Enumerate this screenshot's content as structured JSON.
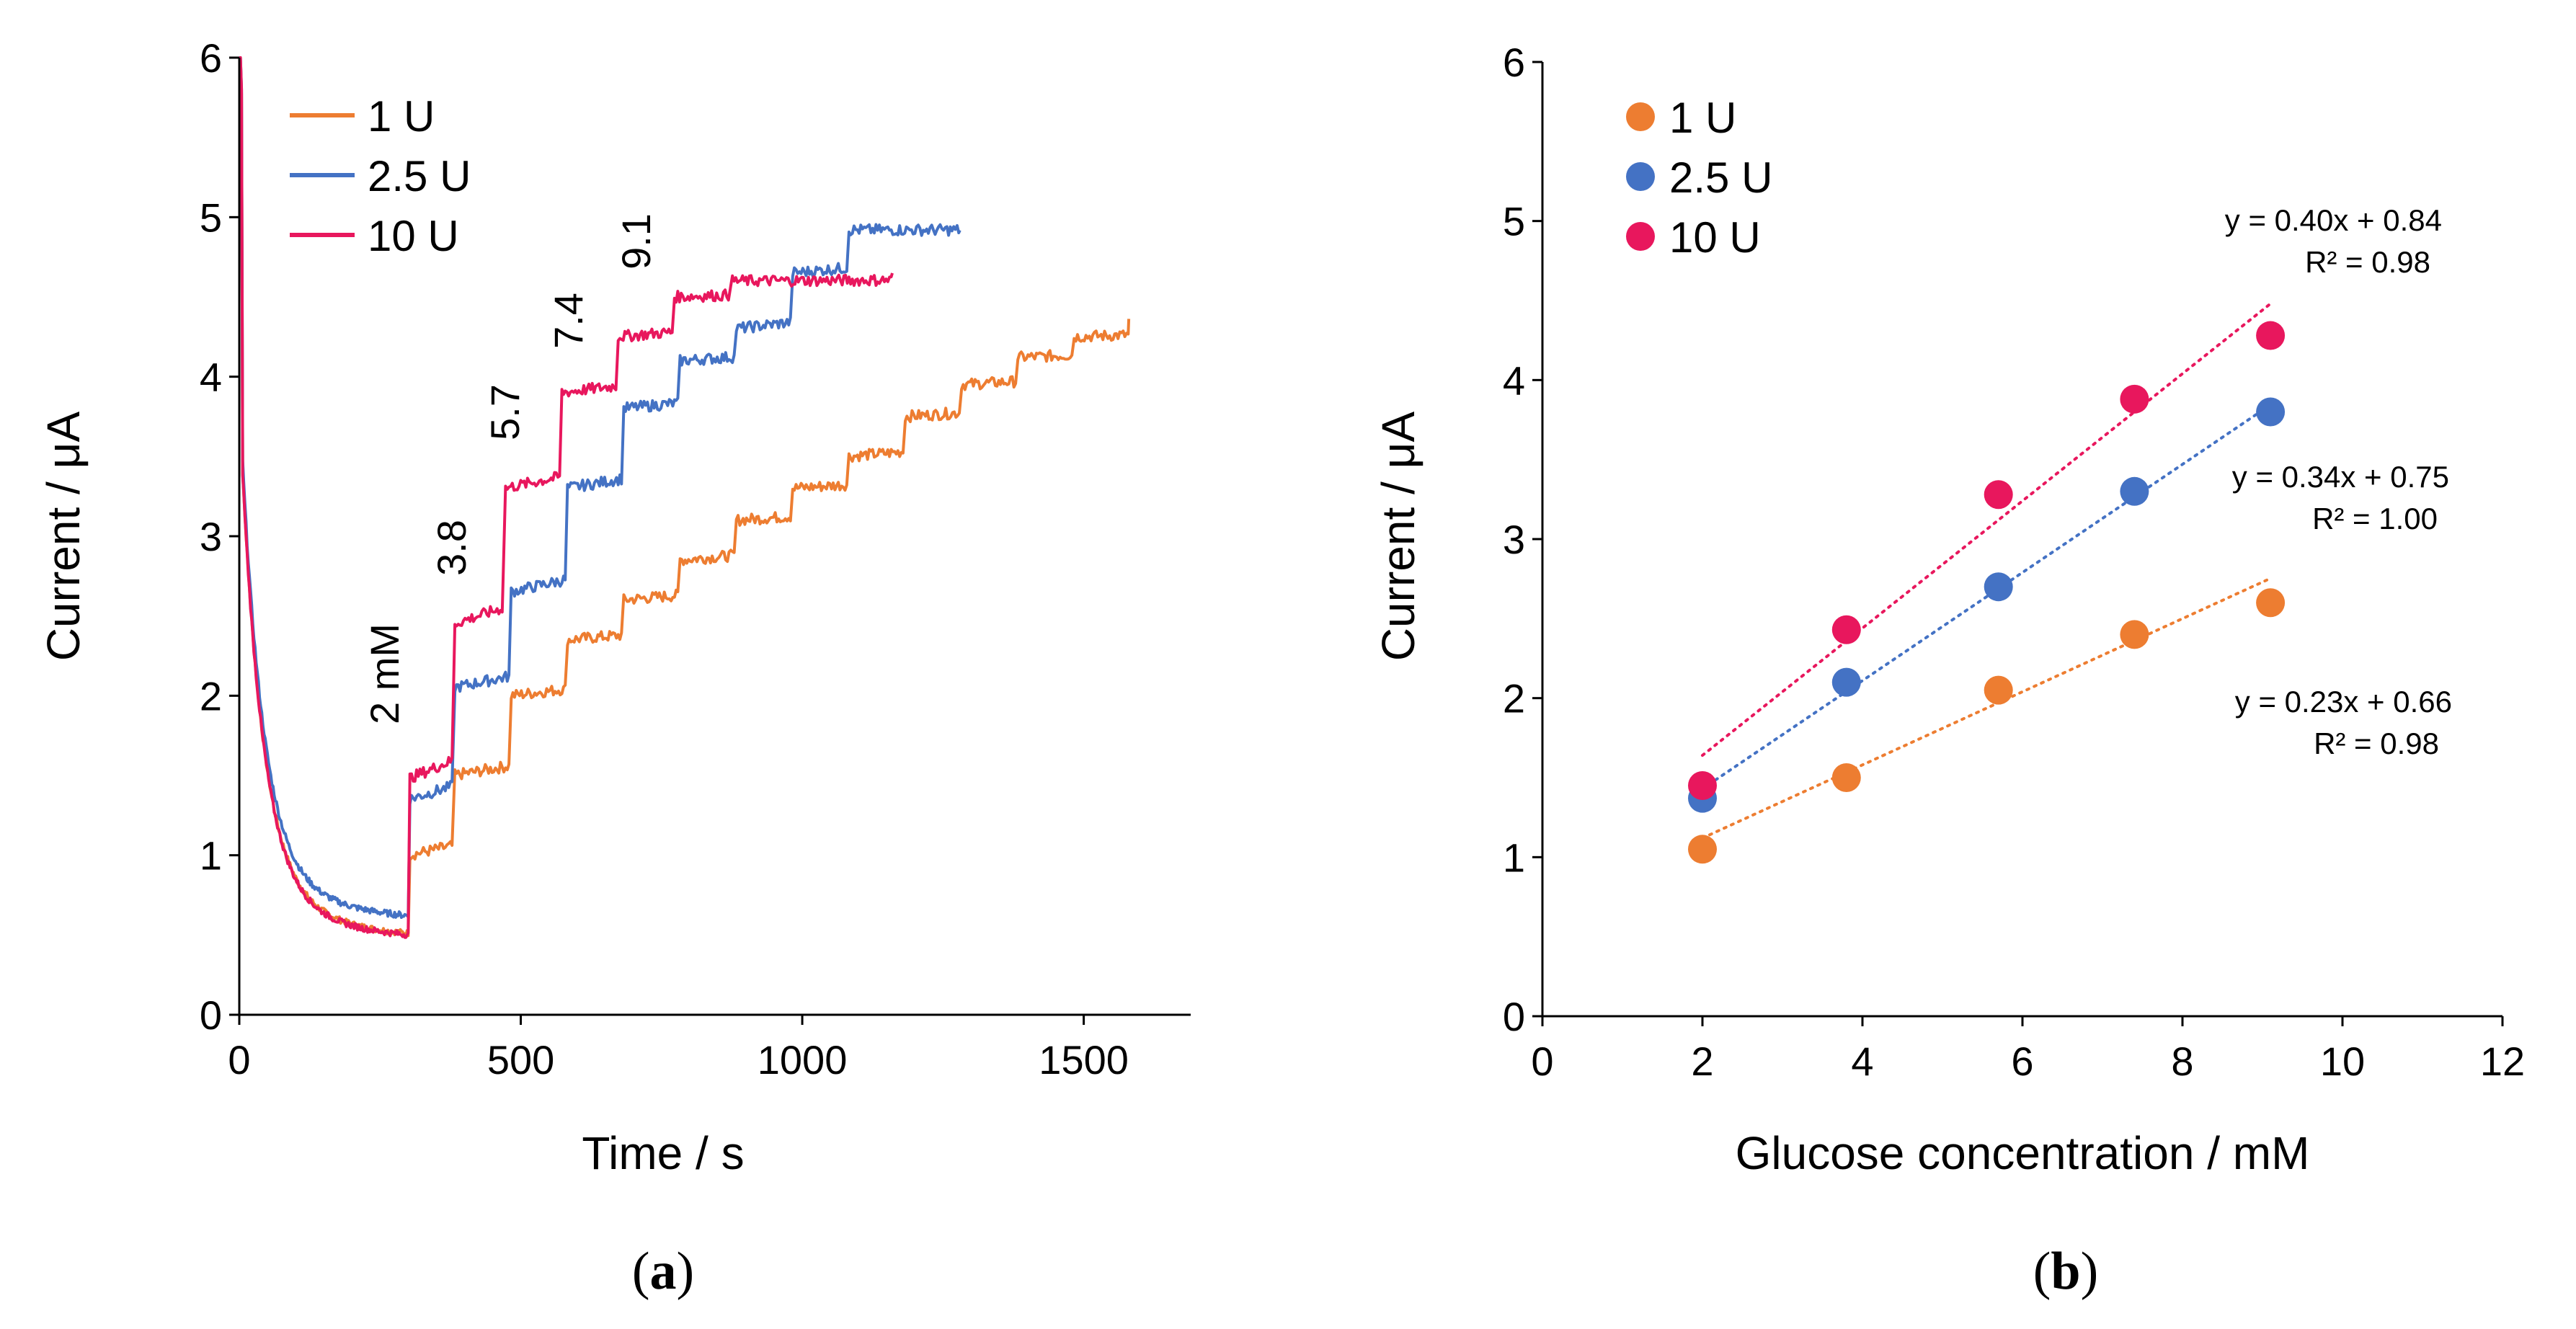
{
  "chart_data": [
    {
      "type": "line",
      "panel_label": "a",
      "xlabel": "Time / s",
      "ylabel": "Current / μA",
      "xlim": [
        0,
        1690
      ],
      "ylim": [
        0,
        6
      ],
      "xticks": [
        "0",
        "500",
        "1000",
        "1500"
      ],
      "yticks": [
        "0",
        "1",
        "2",
        "3",
        "4",
        "5",
        "6"
      ],
      "legend": {
        "position": "top-left",
        "entries": [
          "1 U",
          "2.5 U",
          "10 U"
        ]
      },
      "step_annotations": [
        "2 mM",
        "3.8",
        "5.7",
        "7.4",
        "9.1"
      ],
      "series": [
        {
          "name": "1 U",
          "color": "#ED7D31",
          "decay": {
            "t_end": 300,
            "i_start": 6.0,
            "i_end": 0.47
          },
          "steps": [
            {
              "t": 300,
              "i": 1.0
            },
            {
              "t": 380,
              "i": 1.5
            },
            {
              "t": 480,
              "i": 2.0
            },
            {
              "t": 580,
              "i": 2.35
            },
            {
              "t": 680,
              "i": 2.6
            },
            {
              "t": 780,
              "i": 2.85
            },
            {
              "t": 880,
              "i": 3.1
            },
            {
              "t": 980,
              "i": 3.3
            },
            {
              "t": 1080,
              "i": 3.5
            },
            {
              "t": 1180,
              "i": 3.75
            },
            {
              "t": 1280,
              "i": 3.95
            },
            {
              "t": 1380,
              "i": 4.12
            },
            {
              "t": 1480,
              "i": 4.25
            },
            {
              "t": 1580,
              "i": 4.35
            }
          ]
        },
        {
          "name": "2.5 U",
          "color": "#4472C4",
          "decay": {
            "t_end": 300,
            "i_start": 6.0,
            "i_end": 0.58
          },
          "steps": [
            {
              "t": 300,
              "i": 1.35
            },
            {
              "t": 380,
              "i": 2.05
            },
            {
              "t": 480,
              "i": 2.65
            },
            {
              "t": 580,
              "i": 3.3
            },
            {
              "t": 680,
              "i": 3.8
            },
            {
              "t": 780,
              "i": 4.1
            },
            {
              "t": 880,
              "i": 4.3
            },
            {
              "t": 980,
              "i": 4.65
            },
            {
              "t": 1080,
              "i": 4.92
            },
            {
              "t": 1280,
              "i": 4.92
            }
          ]
        },
        {
          "name": "10 U",
          "color": "#E8175D",
          "decay": {
            "t_end": 300,
            "i_start": 6.0,
            "i_end": 0.46
          },
          "steps": [
            {
              "t": 300,
              "i": 1.48
            },
            {
              "t": 380,
              "i": 2.45
            },
            {
              "t": 470,
              "i": 3.3
            },
            {
              "t": 570,
              "i": 3.9
            },
            {
              "t": 670,
              "i": 4.25
            },
            {
              "t": 770,
              "i": 4.5
            },
            {
              "t": 870,
              "i": 4.6
            },
            {
              "t": 1160,
              "i": 4.65
            }
          ]
        }
      ]
    },
    {
      "type": "scatter",
      "panel_label": "b",
      "xlabel": "Glucose concentration  / mM",
      "ylabel": "Current / μA",
      "xlim": [
        0,
        12
      ],
      "ylim": [
        0,
        6
      ],
      "xticks": [
        "0",
        "2",
        "4",
        "6",
        "8",
        "10",
        "12"
      ],
      "yticks": [
        "0",
        "1",
        "2",
        "3",
        "4",
        "5",
        "6"
      ],
      "legend": {
        "position": "top-left",
        "entries": [
          "1 U",
          "2.5 U",
          "10 U"
        ]
      },
      "x": [
        2.0,
        3.8,
        5.7,
        7.4,
        9.1
      ],
      "series": [
        {
          "name": "1 U",
          "color": "#ED7D31",
          "values": [
            1.05,
            1.5,
            2.05,
            2.4,
            2.6
          ],
          "fit": {
            "slope": 0.23,
            "intercept": 0.66,
            "equation": "y = 0.23x + 0.66",
            "r2": "R² = 0.98"
          }
        },
        {
          "name": "2.5 U",
          "color": "#4472C4",
          "values": [
            1.37,
            2.1,
            2.7,
            3.3,
            3.8
          ],
          "fit": {
            "slope": 0.34,
            "intercept": 0.75,
            "equation": "y = 0.34x + 0.75",
            "r2": "R² = 1.00"
          }
        },
        {
          "name": "10 U",
          "color": "#E8175D",
          "values": [
            1.45,
            2.43,
            3.28,
            3.88,
            4.28
          ],
          "fit": {
            "slope": 0.4,
            "intercept": 0.84,
            "equation": "y = 0.40x + 0.84",
            "r2": "R² = 0.98"
          }
        }
      ]
    }
  ]
}
